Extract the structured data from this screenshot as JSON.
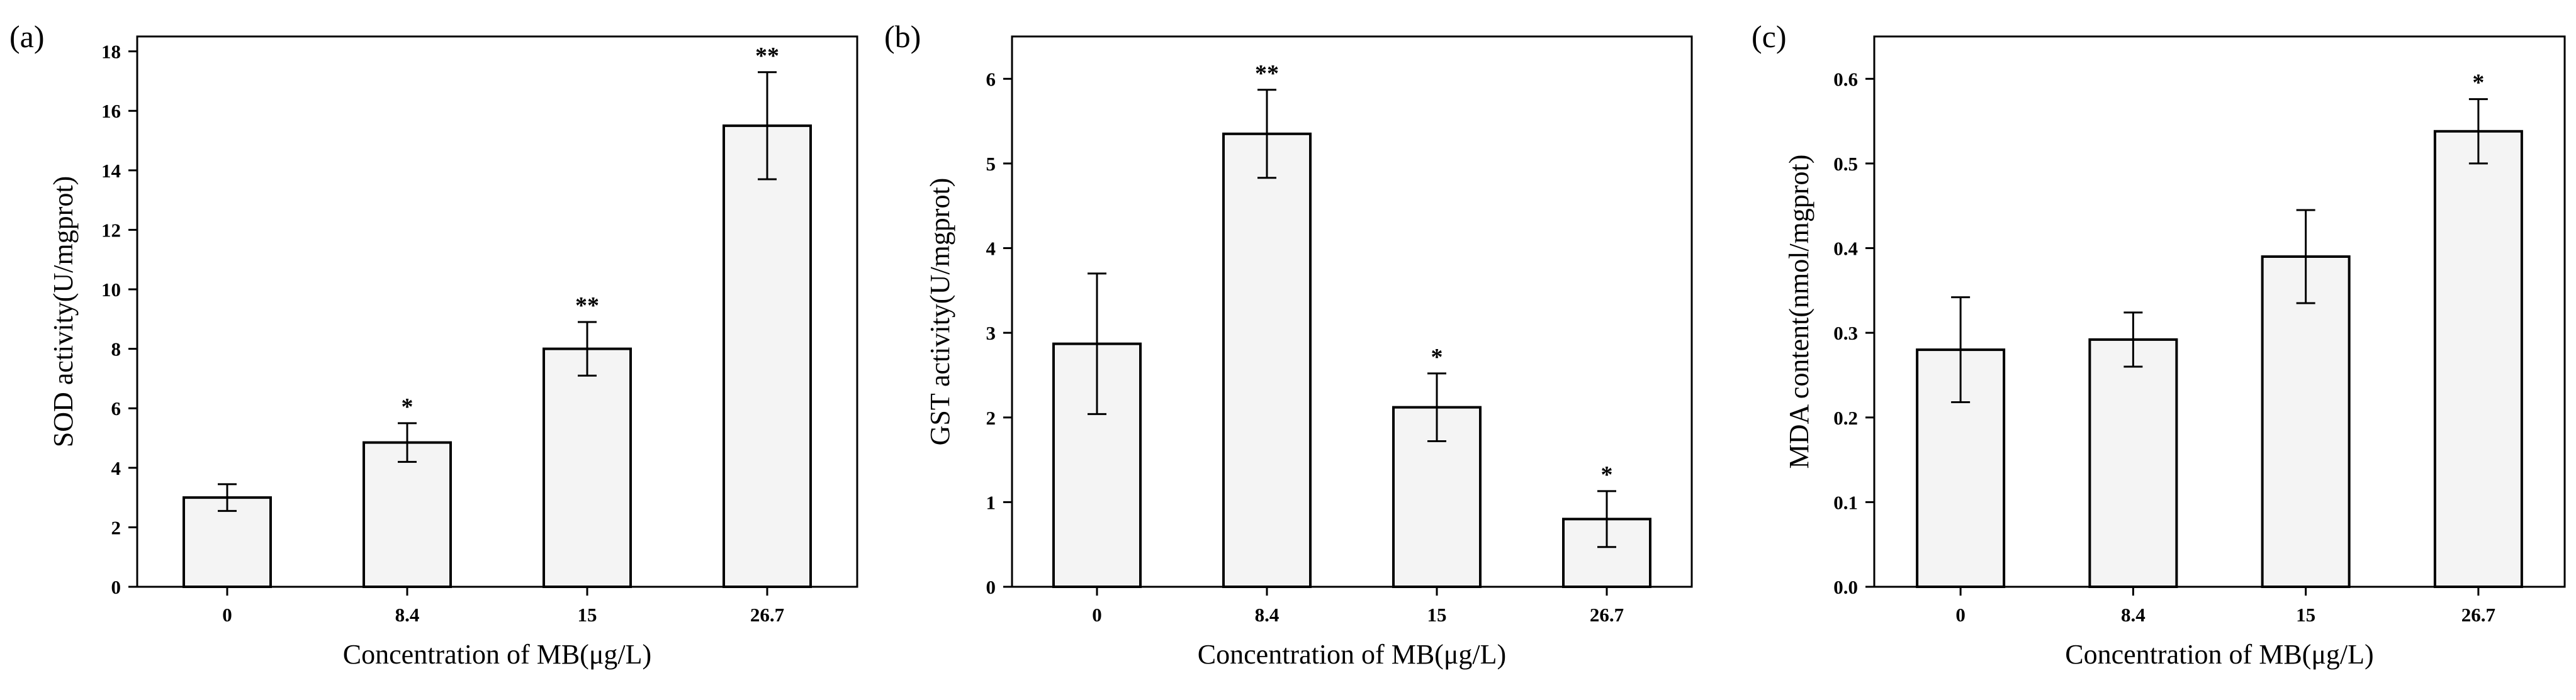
{
  "colors": {
    "bar_fill": "#f4f4f4",
    "stroke": "#000000",
    "background": "#ffffff"
  },
  "chart_data": [
    {
      "type": "bar",
      "panel_label": "(a)",
      "title": "",
      "xlabel": "Concentration of MB(μg/L)",
      "ylabel": "SOD activity(U/mgprot)",
      "categories": [
        "0",
        "8.4",
        "15",
        "26.7"
      ],
      "values": [
        3.0,
        4.85,
        8.0,
        15.5
      ],
      "errors": [
        0.45,
        0.65,
        0.9,
        1.8
      ],
      "significance": [
        "",
        "*",
        "**",
        "**"
      ],
      "ylim": [
        0,
        18.5
      ],
      "yticks": [
        0,
        2,
        4,
        6,
        8,
        10,
        12,
        14,
        16,
        18
      ],
      "ytick_labels": [
        "0",
        "2",
        "4",
        "6",
        "8",
        "10",
        "12",
        "14",
        "16",
        "18"
      ]
    },
    {
      "type": "bar",
      "panel_label": "(b)",
      "title": "",
      "xlabel": "Concentration of MB(μg/L)",
      "ylabel": "GST activity(U/mgprot)",
      "categories": [
        "0",
        "8.4",
        "15",
        "26.7"
      ],
      "values": [
        2.87,
        5.35,
        2.12,
        0.8
      ],
      "errors": [
        0.83,
        0.52,
        0.4,
        0.33
      ],
      "significance": [
        "",
        "**",
        "*",
        "*"
      ],
      "ylim": [
        0,
        6.5
      ],
      "yticks": [
        0,
        1,
        2,
        3,
        4,
        5,
        6
      ],
      "ytick_labels": [
        "0",
        "1",
        "2",
        "3",
        "4",
        "5",
        "6"
      ]
    },
    {
      "type": "bar",
      "panel_label": "(c)",
      "title": "",
      "xlabel": "Concentration of MB(μg/L)",
      "ylabel": "MDA content(nmol/mgprot)",
      "categories": [
        "0",
        "8.4",
        "15",
        "26.7"
      ],
      "values": [
        0.28,
        0.292,
        0.39,
        0.538
      ],
      "errors": [
        0.062,
        0.032,
        0.055,
        0.038
      ],
      "significance": [
        "",
        "",
        "",
        "*"
      ],
      "ylim": [
        0,
        0.65
      ],
      "yticks": [
        0,
        0.1,
        0.2,
        0.3,
        0.4,
        0.5,
        0.6
      ],
      "ytick_labels": [
        "0.0",
        "0.1",
        "0.2",
        "0.3",
        "0.4",
        "0.5",
        "0.6"
      ]
    }
  ]
}
